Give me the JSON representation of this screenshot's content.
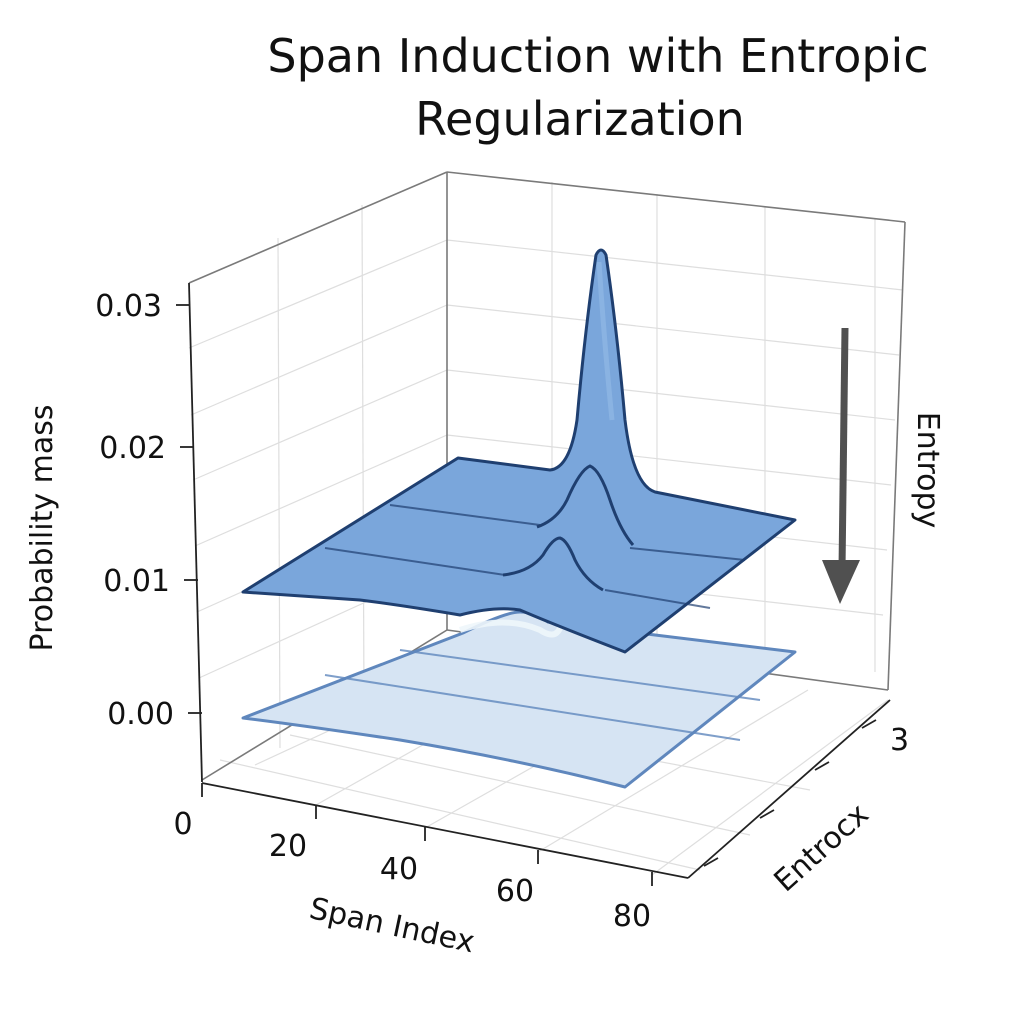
{
  "chart_data": {
    "type": "area",
    "title": "Span Induction with Entropic Regularization",
    "title_lines": [
      "Span Induction with Entropic",
      "Regularization"
    ],
    "xlabel": "Span Index",
    "ylabel": "Probability mass",
    "depth_label": "Entrocx",
    "annotation": "Entropy",
    "x_ticks": [
      "0",
      "20",
      "40",
      "60",
      "80"
    ],
    "z_ticks": [
      "0.00",
      "0.01",
      "0.02",
      "0.03"
    ],
    "depth_ticks": [
      "3"
    ],
    "xlim": [
      0,
      80
    ],
    "zlim": [
      0.0,
      0.03
    ],
    "grid": true,
    "colors": {
      "high_entropy_surface": "#d6e4f3",
      "high_entropy_edge": "#5f87bd",
      "low_entropy_surface": "#7aa6db",
      "low_entropy_edge": "#1f3f70",
      "annotation_arrow": "#505050"
    },
    "series": [
      {
        "x": [
          0,
          20,
          40,
          50,
          55,
          60,
          80
        ],
        "z": [
          0.0,
          0.0,
          0.0,
          0.0,
          0.001,
          0.0,
          0.0
        ]
      },
      {
        "x": [
          0,
          20,
          40,
          48,
          55,
          62,
          80
        ],
        "z": [
          0.009,
          0.009,
          0.009,
          0.0095,
          0.031,
          0.0095,
          0.009
        ]
      }
    ]
  }
}
